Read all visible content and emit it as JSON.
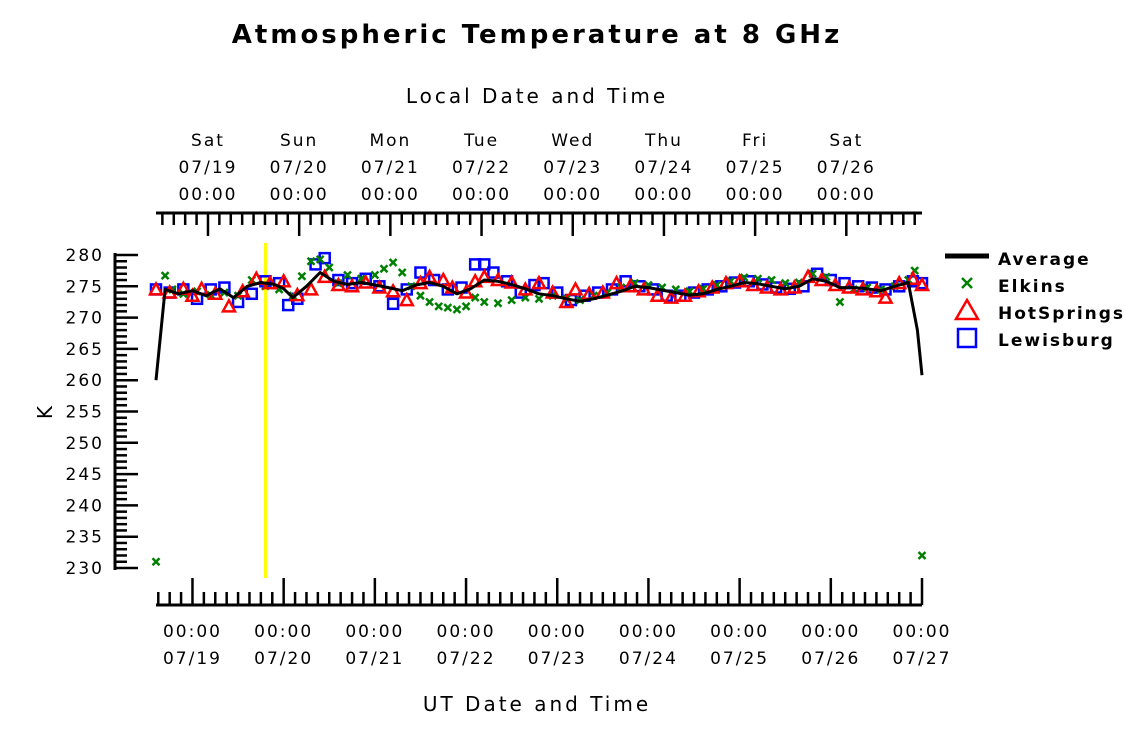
{
  "chart_data": {
    "type": "line",
    "title": "Atmospheric Temperature at 8 GHz",
    "top_axis_title": "Local Date and Time",
    "xlabel": "UT Date and Time",
    "ylabel": "K",
    "ylim": [
      230,
      280
    ],
    "y_ticks": [
      "280",
      "275",
      "270",
      "265",
      "260",
      "255",
      "250",
      "245",
      "240",
      "235",
      "230"
    ],
    "xlim_ut_days": [
      18.6,
      27.0
    ],
    "bottom_ticks": [
      {
        "day": 19,
        "time": "00:00",
        "date": "07/19"
      },
      {
        "day": 20,
        "time": "00:00",
        "date": "07/20"
      },
      {
        "day": 21,
        "time": "00:00",
        "date": "07/21"
      },
      {
        "day": 22,
        "time": "00:00",
        "date": "07/22"
      },
      {
        "day": 23,
        "time": "00:00",
        "date": "07/23"
      },
      {
        "day": 24,
        "time": "00:00",
        "date": "07/24"
      },
      {
        "day": 25,
        "time": "00:00",
        "date": "07/25"
      },
      {
        "day": 26,
        "time": "00:00",
        "date": "07/26"
      },
      {
        "day": 27,
        "time": "00:00",
        "date": "07/27"
      }
    ],
    "top_ticks": [
      {
        "day": 19.17,
        "weekday": "Sat",
        "date": "07/19",
        "time": "00:00"
      },
      {
        "day": 20.17,
        "weekday": "Sun",
        "date": "07/20",
        "time": "00:00"
      },
      {
        "day": 21.17,
        "weekday": "Mon",
        "date": "07/21",
        "time": "00:00"
      },
      {
        "day": 22.17,
        "weekday": "Tue",
        "date": "07/22",
        "time": "00:00"
      },
      {
        "day": 23.17,
        "weekday": "Wed",
        "date": "07/23",
        "time": "00:00"
      },
      {
        "day": 24.17,
        "weekday": "Thu",
        "date": "07/24",
        "time": "00:00"
      },
      {
        "day": 25.17,
        "weekday": "Fri",
        "date": "07/25",
        "time": "00:00"
      },
      {
        "day": 26.17,
        "weekday": "Sat",
        "date": "07/26",
        "time": "00:00"
      }
    ],
    "marker_line_day": 19.8,
    "marker_line_color": "#ffff00",
    "legend_position": "right",
    "series": [
      {
        "name": "Average",
        "style": "line",
        "color": "#000000",
        "points": [
          [
            18.6,
            260.0
          ],
          [
            18.7,
            274.5
          ],
          [
            18.85,
            273.8
          ],
          [
            19.0,
            274.3
          ],
          [
            19.15,
            273.5
          ],
          [
            19.3,
            274.6
          ],
          [
            19.45,
            273.2
          ],
          [
            19.6,
            275.0
          ],
          [
            19.75,
            275.6
          ],
          [
            19.9,
            275.3
          ],
          [
            20.0,
            274.6
          ],
          [
            20.1,
            273.2
          ],
          [
            20.25,
            275.0
          ],
          [
            20.4,
            277.2
          ],
          [
            20.55,
            275.8
          ],
          [
            20.7,
            275.3
          ],
          [
            20.85,
            275.6
          ],
          [
            21.0,
            275.2
          ],
          [
            21.15,
            274.8
          ],
          [
            21.3,
            274.3
          ],
          [
            21.45,
            275.2
          ],
          [
            21.6,
            275.6
          ],
          [
            21.75,
            275.0
          ],
          [
            21.9,
            273.8
          ],
          [
            22.05,
            274.6
          ],
          [
            22.2,
            276.0
          ],
          [
            22.35,
            275.8
          ],
          [
            22.5,
            275.3
          ],
          [
            22.65,
            274.6
          ],
          [
            22.8,
            273.8
          ],
          [
            22.95,
            273.5
          ],
          [
            23.1,
            273.0
          ],
          [
            23.25,
            272.6
          ],
          [
            23.4,
            273.0
          ],
          [
            23.55,
            273.6
          ],
          [
            23.7,
            274.2
          ],
          [
            23.85,
            275.0
          ],
          [
            24.0,
            274.8
          ],
          [
            24.15,
            274.4
          ],
          [
            24.3,
            274.0
          ],
          [
            24.45,
            273.6
          ],
          [
            24.6,
            273.8
          ],
          [
            24.75,
            274.5
          ],
          [
            24.9,
            275.0
          ],
          [
            25.05,
            275.6
          ],
          [
            25.2,
            275.4
          ],
          [
            25.35,
            275.0
          ],
          [
            25.5,
            274.6
          ],
          [
            25.65,
            275.0
          ],
          [
            25.8,
            276.2
          ],
          [
            25.95,
            275.8
          ],
          [
            26.1,
            274.8
          ],
          [
            26.25,
            274.8
          ],
          [
            26.4,
            274.6
          ],
          [
            26.55,
            274.3
          ],
          [
            26.7,
            275.0
          ],
          [
            26.85,
            275.6
          ],
          [
            26.95,
            268.0
          ],
          [
            27.0,
            260.8
          ]
        ]
      },
      {
        "name": "Elkins",
        "style": "x",
        "color": "#008000",
        "points": [
          [
            18.6,
            231.0
          ],
          [
            18.7,
            276.7
          ],
          [
            18.78,
            274.5
          ],
          [
            18.9,
            273.8
          ],
          [
            19.05,
            274.2
          ],
          [
            19.2,
            273.6
          ],
          [
            19.35,
            274.0
          ],
          [
            19.5,
            273.5
          ],
          [
            19.65,
            276.0
          ],
          [
            19.8,
            275.0
          ],
          [
            19.95,
            274.5
          ],
          [
            20.1,
            273.5
          ],
          [
            20.2,
            276.6
          ],
          [
            20.3,
            279.0
          ],
          [
            20.4,
            279.3
          ],
          [
            20.5,
            278.0
          ],
          [
            20.6,
            275.5
          ],
          [
            20.7,
            276.8
          ],
          [
            20.85,
            276.2
          ],
          [
            21.0,
            276.8
          ],
          [
            21.1,
            277.8
          ],
          [
            21.2,
            278.8
          ],
          [
            21.3,
            277.2
          ],
          [
            21.4,
            275.0
          ],
          [
            21.5,
            273.5
          ],
          [
            21.6,
            272.5
          ],
          [
            21.7,
            271.8
          ],
          [
            21.8,
            271.6
          ],
          [
            21.9,
            271.3
          ],
          [
            22.0,
            271.8
          ],
          [
            22.1,
            273.2
          ],
          [
            22.2,
            272.5
          ],
          [
            22.35,
            272.3
          ],
          [
            22.5,
            272.8
          ],
          [
            22.65,
            273.2
          ],
          [
            22.8,
            273.0
          ],
          [
            22.95,
            273.5
          ],
          [
            23.1,
            273.0
          ],
          [
            23.25,
            272.8
          ],
          [
            23.4,
            273.5
          ],
          [
            23.55,
            274.0
          ],
          [
            23.7,
            274.8
          ],
          [
            23.85,
            275.5
          ],
          [
            24.0,
            275.2
          ],
          [
            24.15,
            274.8
          ],
          [
            24.3,
            274.5
          ],
          [
            24.45,
            274.2
          ],
          [
            24.6,
            274.6
          ],
          [
            24.75,
            275.2
          ],
          [
            24.9,
            275.8
          ],
          [
            25.05,
            276.4
          ],
          [
            25.2,
            276.2
          ],
          [
            25.35,
            276.0
          ],
          [
            25.5,
            275.5
          ],
          [
            25.65,
            275.6
          ],
          [
            25.8,
            277.0
          ],
          [
            25.95,
            276.5
          ],
          [
            26.1,
            272.5
          ],
          [
            26.25,
            274.5
          ],
          [
            26.4,
            274.8
          ],
          [
            26.55,
            274.5
          ],
          [
            26.7,
            275.0
          ],
          [
            26.85,
            276.0
          ],
          [
            26.92,
            277.5
          ],
          [
            27.0,
            232.0
          ]
        ]
      },
      {
        "name": "HotSprings",
        "style": "triangle",
        "color": "#ff0000",
        "points": [
          [
            18.6,
            274.5
          ],
          [
            18.75,
            274.0
          ],
          [
            18.9,
            274.6
          ],
          [
            19.0,
            273.5
          ],
          [
            19.1,
            274.6
          ],
          [
            19.25,
            273.8
          ],
          [
            19.4,
            271.8
          ],
          [
            19.55,
            274.2
          ],
          [
            19.7,
            276.2
          ],
          [
            19.85,
            275.5
          ],
          [
            20.0,
            275.8
          ],
          [
            20.15,
            273.6
          ],
          [
            20.3,
            274.5
          ],
          [
            20.45,
            276.5
          ],
          [
            20.6,
            275.2
          ],
          [
            20.75,
            275.0
          ],
          [
            20.9,
            275.6
          ],
          [
            21.05,
            274.8
          ],
          [
            21.2,
            274.2
          ],
          [
            21.35,
            272.8
          ],
          [
            21.5,
            275.5
          ],
          [
            21.6,
            276.5
          ],
          [
            21.75,
            276.0
          ],
          [
            21.85,
            274.8
          ],
          [
            22.0,
            274.0
          ],
          [
            22.1,
            275.8
          ],
          [
            22.2,
            276.5
          ],
          [
            22.35,
            276.0
          ],
          [
            22.5,
            275.6
          ],
          [
            22.65,
            274.5
          ],
          [
            22.8,
            275.5
          ],
          [
            22.95,
            274.0
          ],
          [
            23.1,
            272.5
          ],
          [
            23.2,
            274.5
          ],
          [
            23.35,
            273.8
          ],
          [
            23.5,
            274.0
          ],
          [
            23.65,
            275.5
          ],
          [
            23.8,
            275.0
          ],
          [
            23.95,
            274.5
          ],
          [
            24.1,
            273.5
          ],
          [
            24.25,
            273.2
          ],
          [
            24.4,
            273.5
          ],
          [
            24.55,
            274.2
          ],
          [
            24.7,
            274.8
          ],
          [
            24.85,
            275.5
          ],
          [
            25.0,
            275.8
          ],
          [
            25.15,
            275.2
          ],
          [
            25.3,
            274.8
          ],
          [
            25.45,
            274.5
          ],
          [
            25.6,
            274.8
          ],
          [
            25.75,
            276.5
          ],
          [
            25.9,
            276.0
          ],
          [
            26.05,
            275.2
          ],
          [
            26.2,
            274.8
          ],
          [
            26.35,
            274.5
          ],
          [
            26.5,
            274.2
          ],
          [
            26.6,
            273.2
          ],
          [
            26.75,
            275.5
          ],
          [
            26.9,
            276.2
          ],
          [
            27.0,
            275.2
          ]
        ]
      },
      {
        "name": "Lewisburg",
        "style": "square",
        "color": "#0000ff",
        "points": [
          [
            18.6,
            274.5
          ],
          [
            18.75,
            274.0
          ],
          [
            18.9,
            274.5
          ],
          [
            19.05,
            273.0
          ],
          [
            19.2,
            274.5
          ],
          [
            19.35,
            274.8
          ],
          [
            19.5,
            272.5
          ],
          [
            19.65,
            273.8
          ],
          [
            19.8,
            275.8
          ],
          [
            19.95,
            275.5
          ],
          [
            20.05,
            272.0
          ],
          [
            20.15,
            273.0
          ],
          [
            20.35,
            278.5
          ],
          [
            20.45,
            279.5
          ],
          [
            20.6,
            276.0
          ],
          [
            20.75,
            275.5
          ],
          [
            20.9,
            276.2
          ],
          [
            21.05,
            275.0
          ],
          [
            21.2,
            272.2
          ],
          [
            21.35,
            274.5
          ],
          [
            21.5,
            277.2
          ],
          [
            21.65,
            276.0
          ],
          [
            21.8,
            274.5
          ],
          [
            21.95,
            274.8
          ],
          [
            22.1,
            278.5
          ],
          [
            22.2,
            278.5
          ],
          [
            22.3,
            277.2
          ],
          [
            22.45,
            275.8
          ],
          [
            22.6,
            274.0
          ],
          [
            22.75,
            275.2
          ],
          [
            22.85,
            275.5
          ],
          [
            23.0,
            274.0
          ],
          [
            23.15,
            272.8
          ],
          [
            23.3,
            273.5
          ],
          [
            23.45,
            274.0
          ],
          [
            23.6,
            274.5
          ],
          [
            23.75,
            275.8
          ],
          [
            23.9,
            275.0
          ],
          [
            24.05,
            274.5
          ],
          [
            24.2,
            273.5
          ],
          [
            24.35,
            273.5
          ],
          [
            24.5,
            274.0
          ],
          [
            24.65,
            274.5
          ],
          [
            24.8,
            275.0
          ],
          [
            24.95,
            275.6
          ],
          [
            25.1,
            275.8
          ],
          [
            25.25,
            275.3
          ],
          [
            25.4,
            274.8
          ],
          [
            25.55,
            274.6
          ],
          [
            25.7,
            275.0
          ],
          [
            25.85,
            277.0
          ],
          [
            26.0,
            276.0
          ],
          [
            26.15,
            275.5
          ],
          [
            26.3,
            275.0
          ],
          [
            26.45,
            274.8
          ],
          [
            26.6,
            274.5
          ],
          [
            26.75,
            275.0
          ],
          [
            26.9,
            275.8
          ],
          [
            27.0,
            275.5
          ]
        ]
      }
    ]
  }
}
